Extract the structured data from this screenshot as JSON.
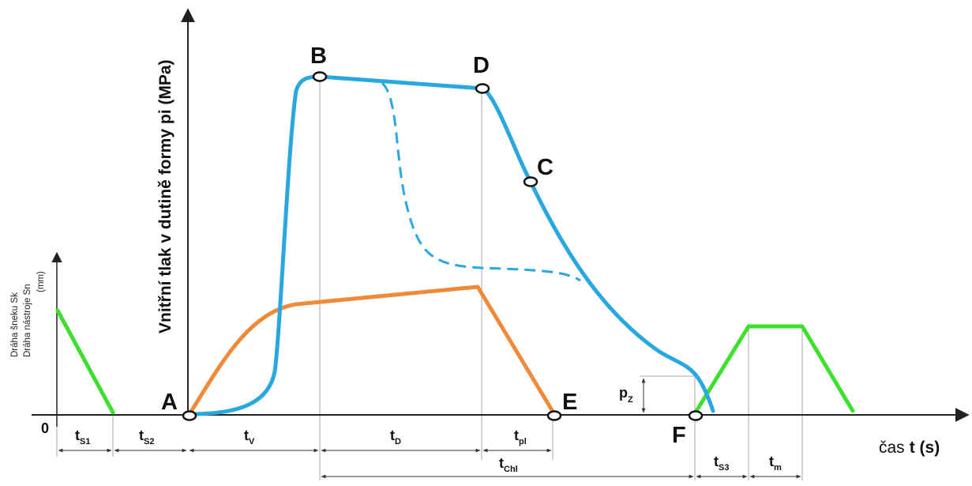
{
  "diagram": {
    "y_axis_main_label": "Vnitřní tlak v dutině formy pi (MPa)",
    "y_axis_secondary_label_1": "Dráha šneku Sk",
    "y_axis_secondary_label_2": "Dráha nástroje Sn",
    "y_axis_secondary_unit": "(mm)",
    "x_axis_label_prefix": "čas",
    "x_axis_label_bold": "t (s)",
    "origin_label": "0",
    "points": {
      "A": "A",
      "B": "B",
      "C": "C",
      "D": "D",
      "E": "E",
      "F": "F"
    },
    "pz_main": "p",
    "pz_sub": "Z",
    "intervals": {
      "ts1_main": "t",
      "ts1_sub": "S1",
      "ts2_main": "t",
      "ts2_sub": "S2",
      "tv_main": "t",
      "tv_sub": "V",
      "td_main": "t",
      "td_sub": "D",
      "tpl_main": "t",
      "tpl_sub": "pl",
      "tchl_main": "t",
      "tchl_sub": "Chl",
      "ts3_main": "t",
      "ts3_sub": "S3",
      "tm_main": "t",
      "tm_sub": "m"
    },
    "colors": {
      "pressure_curve": "#29a8e0",
      "screw_path": "#ef8a3a",
      "tool_path": "#3ee02e",
      "axis": "#222222"
    }
  }
}
